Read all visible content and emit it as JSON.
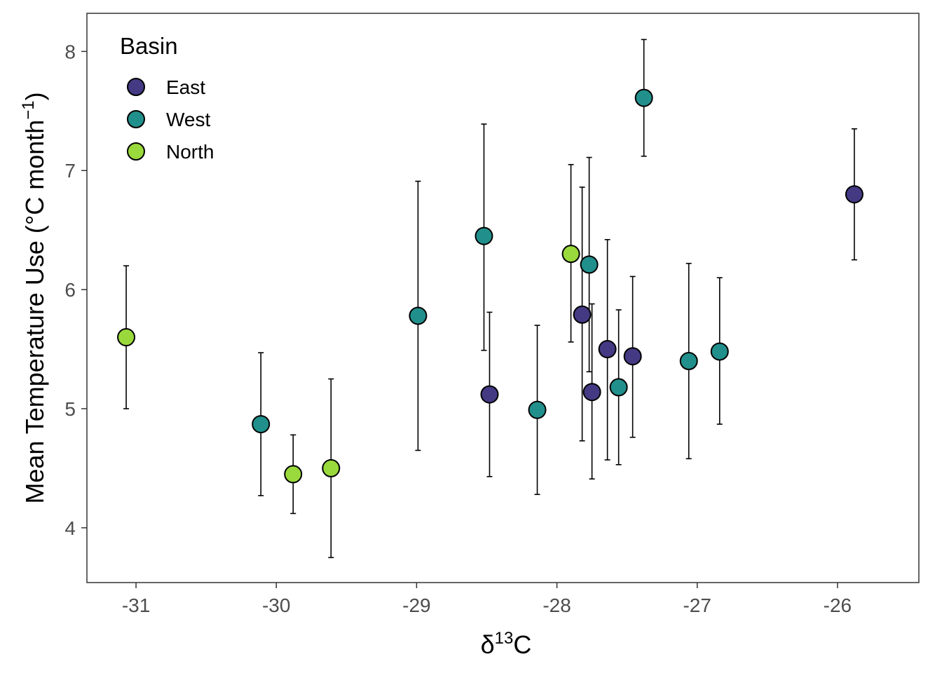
{
  "chart_data": {
    "type": "scatter",
    "xlabel": {
      "prefix": "δ",
      "sup": "13",
      "suffix": "C"
    },
    "ylabel": {
      "main": "Mean Temperature Use (°C month",
      "sup": "−1",
      "close": ")"
    },
    "xlim": [
      -31.35,
      -25.42
    ],
    "ylim": [
      3.54,
      8.32
    ],
    "x_ticks": [
      -31,
      -30,
      -29,
      -28,
      -27,
      -26
    ],
    "x_tick_labels": [
      "-31",
      "-30",
      "-29",
      "-28",
      "-27",
      "-26"
    ],
    "y_ticks": [
      4,
      5,
      6,
      7,
      8
    ],
    "y_tick_labels": [
      "4",
      "5",
      "6",
      "7",
      "8"
    ],
    "grid": false,
    "legend": {
      "title": "Basin",
      "position": "top-left"
    },
    "series": [
      {
        "name": "East",
        "color": "#443983",
        "points": [
          {
            "x": -28.48,
            "y": 5.12,
            "ymin": 4.43,
            "ymax": 5.81
          },
          {
            "x": -27.82,
            "y": 5.79,
            "ymin": 4.73,
            "ymax": 6.86
          },
          {
            "x": -27.75,
            "y": 5.14,
            "ymin": 4.41,
            "ymax": 5.88
          },
          {
            "x": -27.64,
            "y": 5.5,
            "ymin": 4.57,
            "ymax": 6.42
          },
          {
            "x": -27.46,
            "y": 5.44,
            "ymin": 4.76,
            "ymax": 6.11
          },
          {
            "x": -25.88,
            "y": 6.8,
            "ymin": 6.25,
            "ymax": 7.35
          }
        ]
      },
      {
        "name": "West",
        "color": "#21908c",
        "points": [
          {
            "x": -30.11,
            "y": 4.87,
            "ymin": 4.27,
            "ymax": 5.47
          },
          {
            "x": -28.99,
            "y": 5.78,
            "ymin": 4.65,
            "ymax": 6.91
          },
          {
            "x": -28.52,
            "y": 6.45,
            "ymin": 5.49,
            "ymax": 7.39
          },
          {
            "x": -28.14,
            "y": 4.99,
            "ymin": 4.28,
            "ymax": 5.7
          },
          {
            "x": -27.77,
            "y": 6.21,
            "ymin": 5.31,
            "ymax": 7.11
          },
          {
            "x": -27.56,
            "y": 5.18,
            "ymin": 4.53,
            "ymax": 5.83
          },
          {
            "x": -27.38,
            "y": 7.61,
            "ymin": 7.12,
            "ymax": 8.1
          },
          {
            "x": -27.06,
            "y": 5.4,
            "ymin": 4.58,
            "ymax": 6.22
          },
          {
            "x": -26.84,
            "y": 5.48,
            "ymin": 4.87,
            "ymax": 6.1
          }
        ]
      },
      {
        "name": "North",
        "color": "#9ad93c",
        "points": [
          {
            "x": -31.07,
            "y": 5.6,
            "ymin": 5.0,
            "ymax": 6.2
          },
          {
            "x": -29.88,
            "y": 4.45,
            "ymin": 4.12,
            "ymax": 4.78
          },
          {
            "x": -29.61,
            "y": 4.5,
            "ymin": 3.75,
            "ymax": 5.25
          },
          {
            "x": -27.9,
            "y": 6.3,
            "ymin": 5.56,
            "ymax": 7.05
          }
        ]
      }
    ]
  }
}
